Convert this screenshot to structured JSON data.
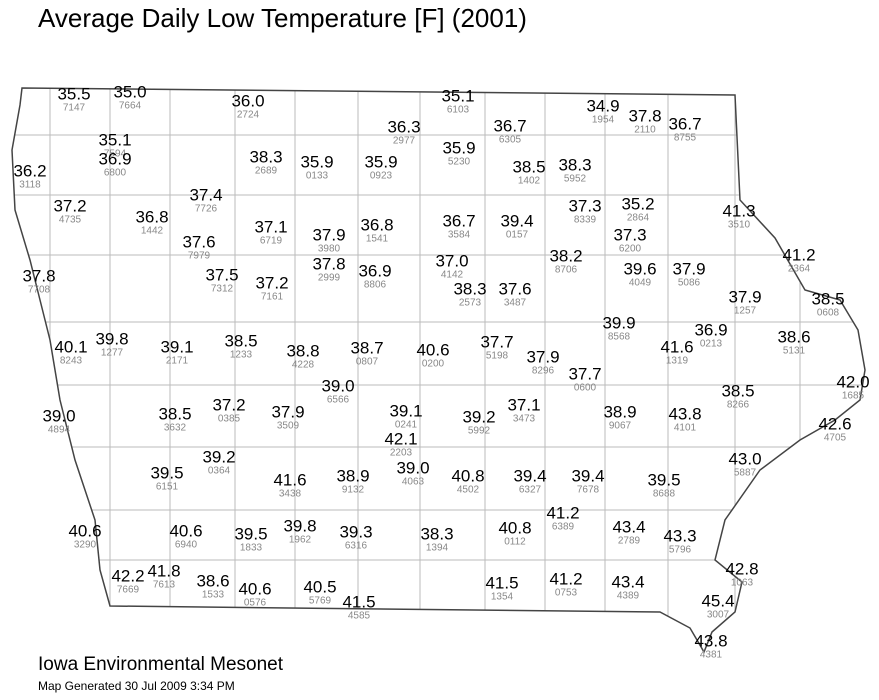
{
  "title": "Average Daily Low Temperature [F] (2001)",
  "stations": [
    {
      "value": "35.5",
      "id": "7147"
    },
    {
      "value": "35.0",
      "id": "7664"
    },
    {
      "value": "36.0",
      "id": "2724"
    },
    {
      "value": "35.1",
      "id": "6103"
    },
    {
      "value": "34.9",
      "id": "1954"
    },
    {
      "value": "37.8",
      "id": "2110"
    },
    {
      "value": "36.7",
      "id": "8755"
    },
    {
      "value": "36.3",
      "id": "2977"
    },
    {
      "value": "36.7",
      "id": "6305"
    },
    {
      "value": "35.1",
      "id": "7594"
    },
    {
      "value": "36.9",
      "id": "6800"
    },
    {
      "value": "36.2",
      "id": "3118"
    },
    {
      "value": "38.3",
      "id": "2689"
    },
    {
      "value": "35.9",
      "id": "0133"
    },
    {
      "value": "35.9",
      "id": "0923"
    },
    {
      "value": "35.9",
      "id": "5230"
    },
    {
      "value": "38.5",
      "id": "1402"
    },
    {
      "value": "38.3",
      "id": "5952"
    },
    {
      "value": "37.4",
      "id": "7726"
    },
    {
      "value": "37.2",
      "id": "4735"
    },
    {
      "value": "36.8",
      "id": "1442"
    },
    {
      "value": "37.1",
      "id": "6719"
    },
    {
      "value": "37.9",
      "id": "3980"
    },
    {
      "value": "36.8",
      "id": "1541"
    },
    {
      "value": "36.7",
      "id": "3584"
    },
    {
      "value": "39.4",
      "id": "0157"
    },
    {
      "value": "37.3",
      "id": "8339"
    },
    {
      "value": "35.2",
      "id": "2864"
    },
    {
      "value": "41.3",
      "id": "3510"
    },
    {
      "value": "37.6",
      "id": "7979"
    },
    {
      "value": "37.3",
      "id": "6200"
    },
    {
      "value": "41.2",
      "id": "2364"
    },
    {
      "value": "37.8",
      "id": "2999"
    },
    {
      "value": "36.9",
      "id": "8806"
    },
    {
      "value": "37.0",
      "id": "4142"
    },
    {
      "value": "38.2",
      "id": "8706"
    },
    {
      "value": "39.6",
      "id": "4049"
    },
    {
      "value": "37.9",
      "id": "5086"
    },
    {
      "value": "37.8",
      "id": "7708"
    },
    {
      "value": "37.5",
      "id": "7312"
    },
    {
      "value": "37.2",
      "id": "7161"
    },
    {
      "value": "38.3",
      "id": "2573"
    },
    {
      "value": "37.6",
      "id": "3487"
    },
    {
      "value": "37.9",
      "id": "1257"
    },
    {
      "value": "38.5",
      "id": "0608"
    },
    {
      "value": "40.1",
      "id": "8243"
    },
    {
      "value": "39.8",
      "id": "1277"
    },
    {
      "value": "39.1",
      "id": "2171"
    },
    {
      "value": "38.5",
      "id": "1233"
    },
    {
      "value": "38.8",
      "id": "4228"
    },
    {
      "value": "38.7",
      "id": "0807"
    },
    {
      "value": "40.6",
      "id": "0200"
    },
    {
      "value": "37.7",
      "id": "5198"
    },
    {
      "value": "39.9",
      "id": "8568"
    },
    {
      "value": "36.9",
      "id": "0213"
    },
    {
      "value": "41.6",
      "id": "1319"
    },
    {
      "value": "38.6",
      "id": "5131"
    },
    {
      "value": "37.9",
      "id": "8296"
    },
    {
      "value": "37.7",
      "id": "0600"
    },
    {
      "value": "42.0",
      "id": "1685"
    },
    {
      "value": "39.0",
      "id": "6566"
    },
    {
      "value": "39.0",
      "id": "4894"
    },
    {
      "value": "38.5",
      "id": "3632"
    },
    {
      "value": "37.2",
      "id": "0385"
    },
    {
      "value": "37.9",
      "id": "3509"
    },
    {
      "value": "39.1",
      "id": "0241"
    },
    {
      "value": "39.2",
      "id": "5992"
    },
    {
      "value": "37.1",
      "id": "3473"
    },
    {
      "value": "38.9",
      "id": "9067"
    },
    {
      "value": "43.8",
      "id": "4101"
    },
    {
      "value": "38.5",
      "id": "8266"
    },
    {
      "value": "42.6",
      "id": "4705"
    },
    {
      "value": "42.1",
      "id": "2203"
    },
    {
      "value": "39.2",
      "id": "0364"
    },
    {
      "value": "39.0",
      "id": "4063"
    },
    {
      "value": "43.0",
      "id": "5887"
    },
    {
      "value": "39.5",
      "id": "6151"
    },
    {
      "value": "41.6",
      "id": "3438"
    },
    {
      "value": "38.9",
      "id": "9132"
    },
    {
      "value": "40.8",
      "id": "4502"
    },
    {
      "value": "39.4",
      "id": "6327"
    },
    {
      "value": "39.4",
      "id": "7678"
    },
    {
      "value": "39.5",
      "id": "8688"
    },
    {
      "value": "41.2",
      "id": "6389"
    },
    {
      "value": "40.6",
      "id": "3290"
    },
    {
      "value": "40.6",
      "id": "6940"
    },
    {
      "value": "39.5",
      "id": "1833"
    },
    {
      "value": "39.8",
      "id": "1962"
    },
    {
      "value": "39.3",
      "id": "6316"
    },
    {
      "value": "38.3",
      "id": "1394"
    },
    {
      "value": "40.8",
      "id": "0112"
    },
    {
      "value": "43.4",
      "id": "2789"
    },
    {
      "value": "43.3",
      "id": "5796"
    },
    {
      "value": "42.8",
      "id": "1063"
    },
    {
      "value": "42.2",
      "id": "7669"
    },
    {
      "value": "41.8",
      "id": "7613"
    },
    {
      "value": "38.6",
      "id": "1533"
    },
    {
      "value": "40.6",
      "id": "0576"
    },
    {
      "value": "40.5",
      "id": "5769"
    },
    {
      "value": "41.5",
      "id": "4585"
    },
    {
      "value": "41.5",
      "id": "1354"
    },
    {
      "value": "41.2",
      "id": "0753"
    },
    {
      "value": "43.4",
      "id": "4389"
    },
    {
      "value": "45.4",
      "id": "3007"
    },
    {
      "value": "43.8",
      "id": "4381"
    }
  ],
  "footer": {
    "org": "Iowa Environmental Mesonet",
    "generated": "Map Generated 30 Jul 2009 3:34 PM"
  }
}
